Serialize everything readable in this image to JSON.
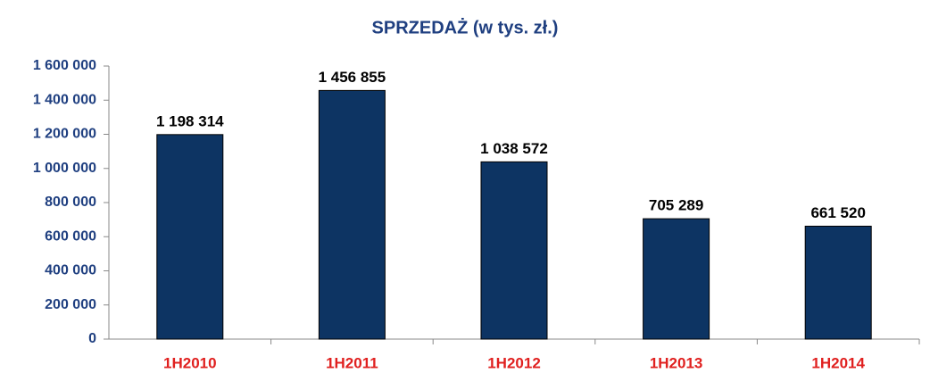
{
  "chart_data": {
    "type": "bar",
    "title": "SPRZEDAŻ (w tys. zł.)",
    "categories": [
      "1H2010",
      "1H2011",
      "1H2012",
      "1H2013",
      "1H2014"
    ],
    "values": [
      1198314,
      1456855,
      1038572,
      705289,
      661520
    ],
    "value_labels": [
      "1 198 314",
      "1 456 855",
      "1 038 572",
      "705 289",
      "661 520"
    ],
    "color": "#0d3463",
    "ylim": [
      0,
      1600000
    ],
    "yticks": [
      0,
      {
        "value": 200000,
        "label": "200 000"
      },
      {
        "value": 400000,
        "label": "400 000"
      },
      {
        "value": 600000,
        "label": "600 000"
      },
      {
        "value": 800000,
        "label": "800 000"
      },
      {
        "value": 1000000,
        "label": "1 000 000"
      },
      {
        "value": 1200000,
        "label": "1 200 000"
      },
      {
        "value": 1400000,
        "label": "1 400 000"
      },
      {
        "value": 1600000,
        "label": "1 600 000"
      }
    ],
    "grid": false
  }
}
